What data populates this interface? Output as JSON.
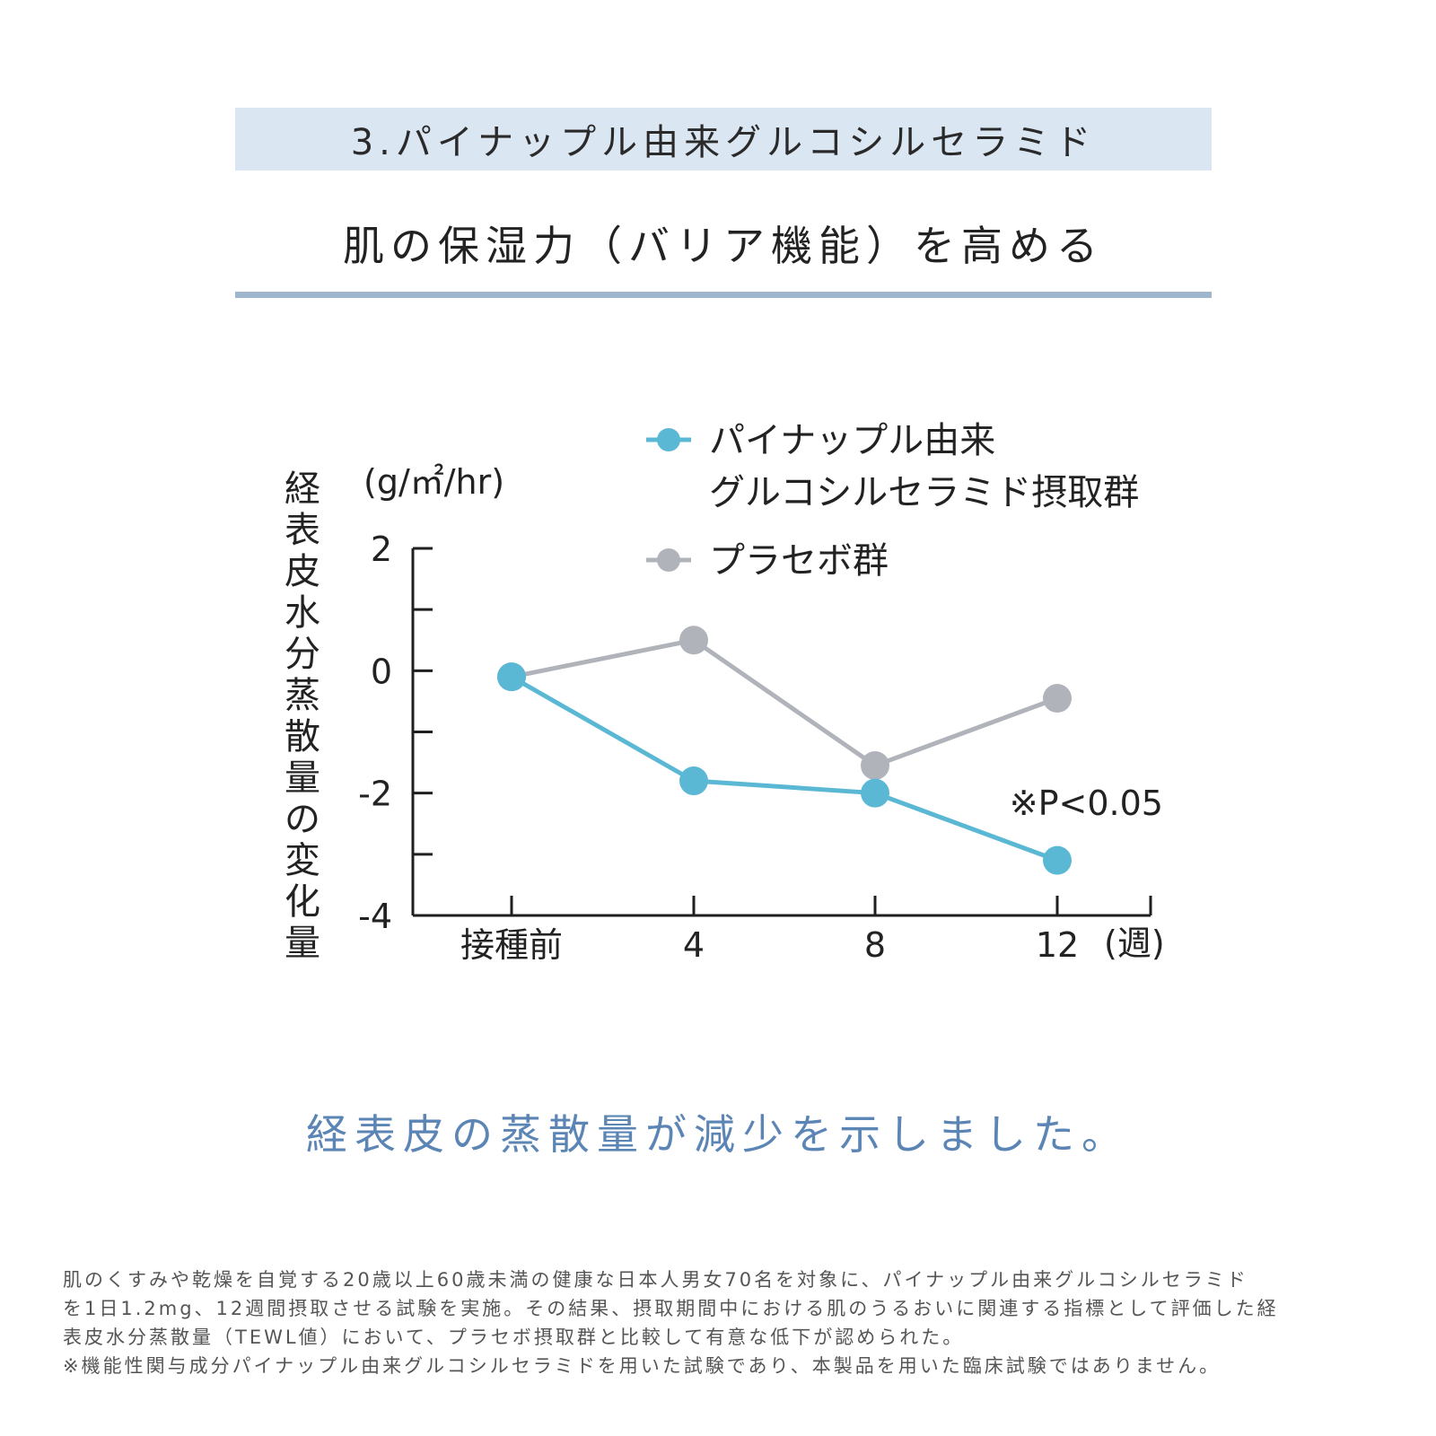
{
  "header": {
    "title": "3.パイナップル由来グルコシルセラミド",
    "subtitle": "肌の保湿力（バリア機能）を高める"
  },
  "chart_data": {
    "type": "line",
    "ylabel": "経表皮水分蒸散量の変化量",
    "yunit": "(g/㎡/hr)",
    "xunit": "(週)",
    "categories": [
      "接種前",
      "4",
      "8",
      "12"
    ],
    "ylim": [
      -4,
      2
    ],
    "yticks": [
      2,
      0,
      -2,
      -4
    ],
    "series": [
      {
        "name": "パイナップル由来グルコシルセラミド摂取群",
        "legend_lines": [
          "パイナップル由来",
          "グルコシルセラミド摂取群"
        ],
        "color": "#5bb8d4",
        "values": [
          -0.1,
          -1.8,
          -2.0,
          -3.1
        ]
      },
      {
        "name": "プラセボ群",
        "legend_lines": [
          "プラセボ群"
        ],
        "color": "#b0b4ba",
        "values": [
          -0.1,
          0.5,
          -1.55,
          -0.45
        ]
      }
    ],
    "annotation": "※P<0.05",
    "grid": false
  },
  "conclusion": "経表皮の蒸散量が減少を示しました。",
  "footnote": [
    "肌のくすみや乾燥を自覚する20歳以上60歳未満の健康な日本人男女70名を対象に、パイナップル由来グルコシルセラミド",
    "を1日1.2mg、12週間摂取させる試験を実施。その結果、摂取期間中における肌のうるおいに関連する指標として評価した経",
    "表皮水分蒸散量（TEWL値）において、プラセボ摂取群と比較して有意な低下が認められた。",
    "※機能性関与成分パイナップル由来グルコシルセラミドを用いた試験であり、本製品を用いた臨床試験ではありません。"
  ]
}
